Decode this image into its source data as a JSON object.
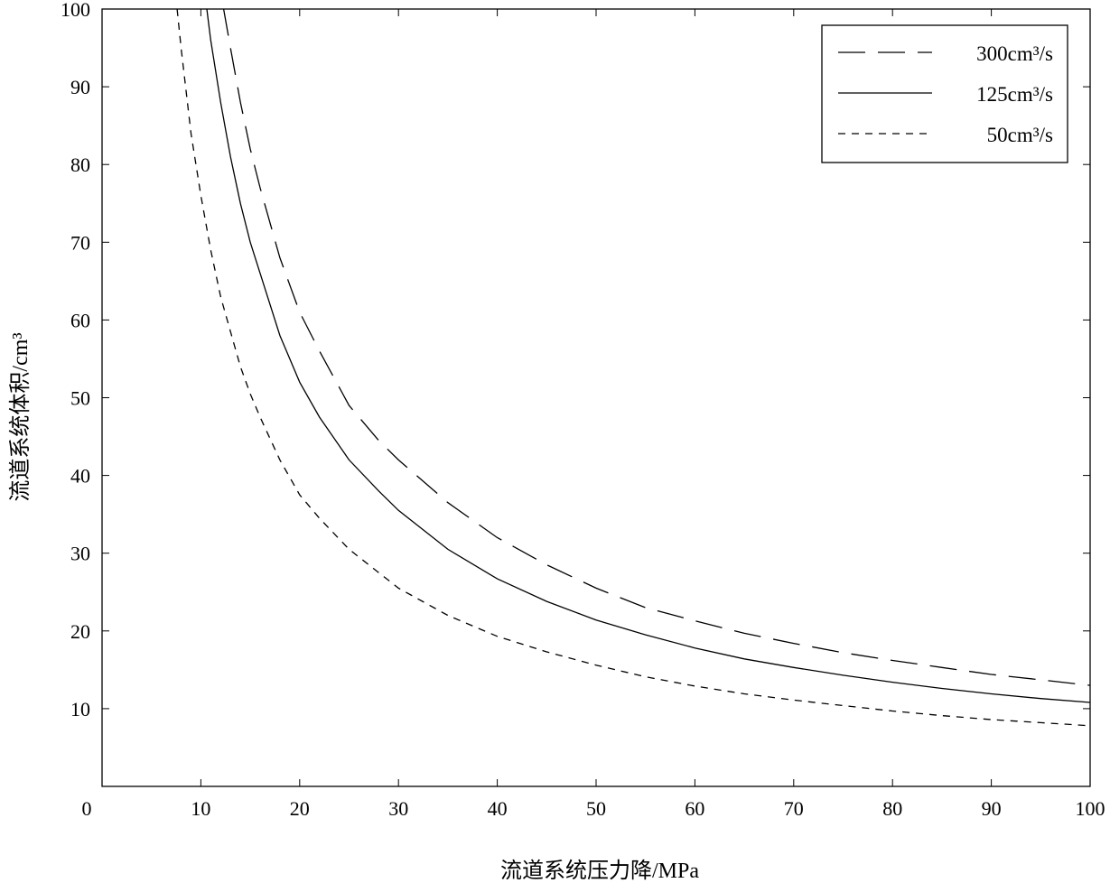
{
  "chart_data": {
    "type": "line",
    "title": "",
    "xlabel": "流道系统压力降/MPa",
    "ylabel": "流道系统体积/cm³",
    "xlim": [
      0,
      100
    ],
    "ylim": [
      0,
      100
    ],
    "x_ticks": [
      "0",
      "10",
      "20",
      "30",
      "40",
      "50",
      "60",
      "70",
      "80",
      "90",
      "100"
    ],
    "y_ticks": [
      "10",
      "20",
      "30",
      "40",
      "50",
      "60",
      "70",
      "80",
      "90",
      "100"
    ],
    "grid": false,
    "legend_position": "top-right",
    "series": [
      {
        "name": "300cm³/s",
        "line_style": "long-dash",
        "x": [
          12.3,
          13,
          14,
          15,
          16,
          18,
          20,
          22,
          25,
          28,
          30,
          35,
          40,
          45,
          50,
          55,
          60,
          65,
          70,
          75,
          80,
          85,
          90,
          95,
          100
        ],
        "y": [
          100,
          95,
          88,
          82,
          77,
          68,
          61,
          56,
          49,
          44.5,
          42,
          36.5,
          32,
          28.5,
          25.5,
          23,
          21.3,
          19.7,
          18.4,
          17.2,
          16.2,
          15.3,
          14.4,
          13.7,
          13.0
        ]
      },
      {
        "name": "125cm³/s",
        "line_style": "solid",
        "x": [
          10.6,
          11,
          12,
          13,
          14,
          15,
          16,
          18,
          20,
          22,
          25,
          28,
          30,
          35,
          40,
          45,
          50,
          55,
          60,
          65,
          70,
          75,
          80,
          85,
          90,
          95,
          100
        ],
        "y": [
          100,
          96,
          88,
          81,
          75,
          70,
          66,
          58,
          52,
          47.5,
          42,
          38,
          35.5,
          30.5,
          26.7,
          23.8,
          21.4,
          19.5,
          17.8,
          16.4,
          15.3,
          14.3,
          13.4,
          12.6,
          11.9,
          11.3,
          10.8
        ]
      },
      {
        "name": "50cm³/s",
        "line_style": "short-dash",
        "x": [
          7.6,
          8,
          9,
          10,
          11,
          12,
          13,
          14,
          15,
          16,
          18,
          20,
          22,
          25,
          28,
          30,
          35,
          40,
          45,
          50,
          55,
          60,
          65,
          70,
          75,
          80,
          85,
          90,
          95,
          100
        ],
        "y": [
          100,
          95,
          84,
          76,
          69,
          63,
          58.5,
          54,
          50.5,
          47.5,
          42,
          37.5,
          34.5,
          30.5,
          27.5,
          25.5,
          22,
          19.3,
          17.3,
          15.6,
          14.1,
          12.9,
          11.9,
          11.1,
          10.4,
          9.7,
          9.1,
          8.6,
          8.2,
          7.8
        ]
      }
    ]
  }
}
